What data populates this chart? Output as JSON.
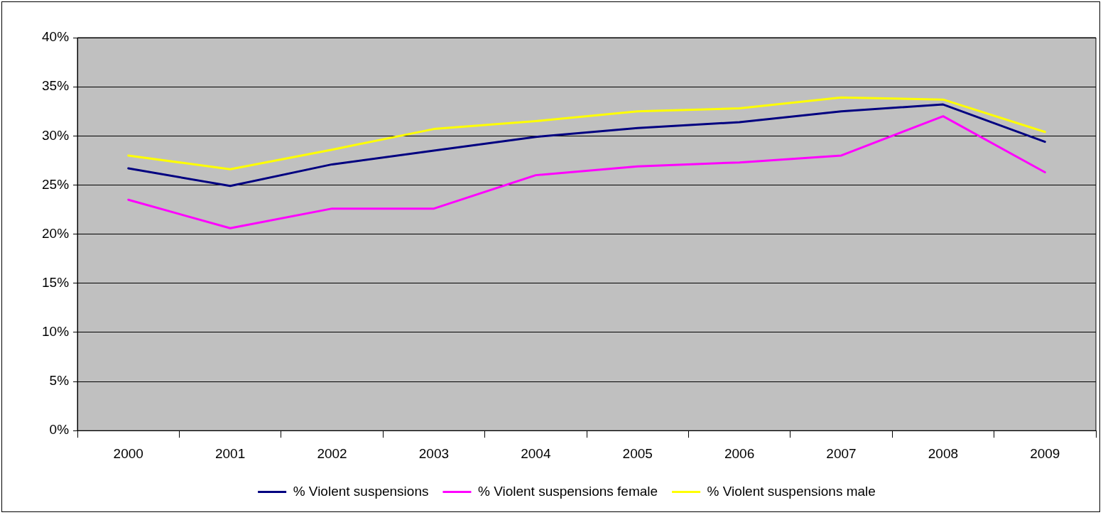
{
  "chart_data": {
    "type": "line",
    "categories": [
      "2000",
      "2001",
      "2002",
      "2003",
      "2004",
      "2005",
      "2006",
      "2007",
      "2008",
      "2009"
    ],
    "series": [
      {
        "name": "% Violent suspensions",
        "color": "#000080",
        "values": [
          26.7,
          24.9,
          27.1,
          28.5,
          29.9,
          30.8,
          31.4,
          32.5,
          33.2,
          29.4
        ]
      },
      {
        "name": "% Violent suspensions female",
        "color": "#ff00ff",
        "values": [
          23.5,
          20.6,
          22.6,
          22.6,
          26.0,
          26.9,
          27.3,
          28.0,
          32.0,
          26.3
        ]
      },
      {
        "name": "% Violent suspensions male",
        "color": "#ffff00",
        "values": [
          28.0,
          26.6,
          28.6,
          30.7,
          31.5,
          32.5,
          32.8,
          33.9,
          33.7,
          30.4
        ]
      }
    ],
    "ylim": [
      0,
      40
    ],
    "yticks": [
      {
        "value": 0,
        "label": "0%"
      },
      {
        "value": 5,
        "label": "5%"
      },
      {
        "value": 10,
        "label": "10%"
      },
      {
        "value": 15,
        "label": "15%"
      },
      {
        "value": 20,
        "label": "20%"
      },
      {
        "value": 25,
        "label": "25%"
      },
      {
        "value": 30,
        "label": "30%"
      },
      {
        "value": 35,
        "label": "35%"
      },
      {
        "value": 40,
        "label": "40%"
      }
    ],
    "grid": "y",
    "legend": "bottom",
    "marker": "none",
    "line_style": "solid"
  }
}
